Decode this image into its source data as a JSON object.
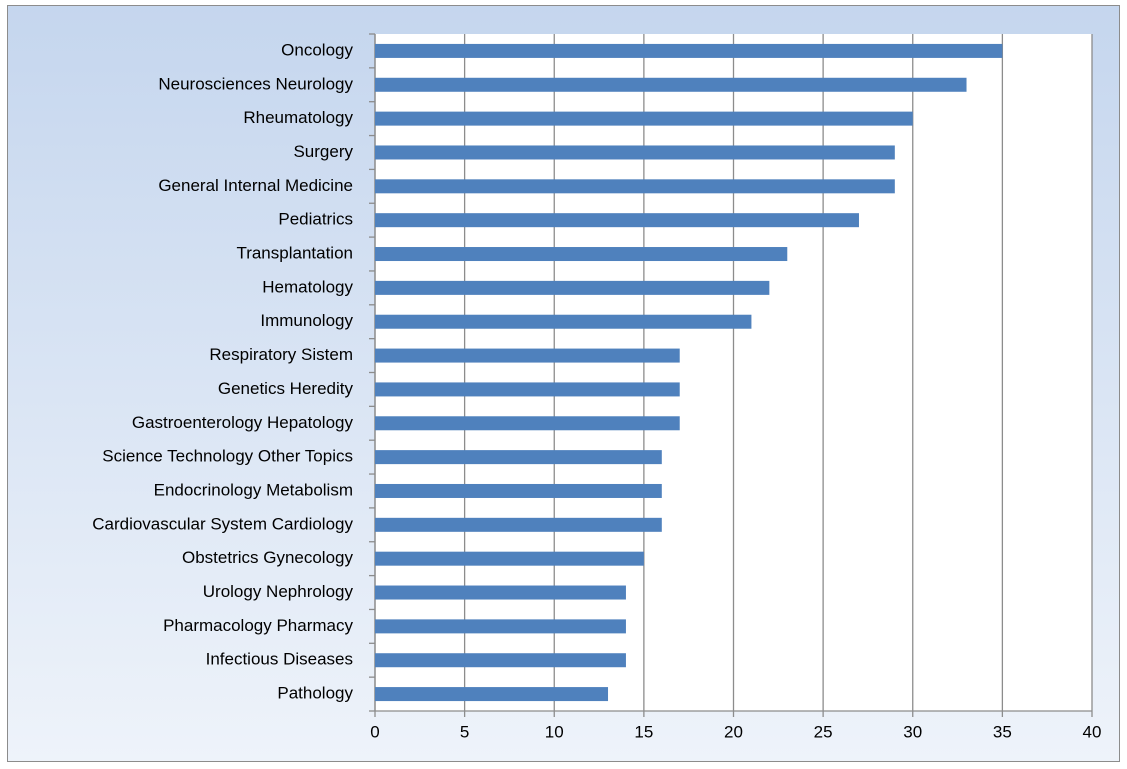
{
  "chart_data": {
    "type": "bar",
    "orientation": "horizontal",
    "categories": [
      "Oncology",
      "Neurosciences Neurology",
      "Rheumatology",
      "Surgery",
      "General Internal Medicine",
      "Pediatrics",
      "Transplantation",
      "Hematology",
      "Immunology",
      "Respiratory Sistem",
      "Genetics Heredity",
      "Gastroenterology Hepatology",
      "Science Technology Other Topics",
      "Endocrinology Metabolism",
      "Cardiovascular System Cardiology",
      "Obstetrics Gynecology",
      "Urology Nephrology",
      "Pharmacology Pharmacy",
      "Infectious Diseases",
      "Pathology"
    ],
    "values": [
      35,
      33,
      30,
      29,
      29,
      27,
      23,
      22,
      21,
      17,
      17,
      17,
      16,
      16,
      16,
      15,
      14,
      14,
      14,
      13
    ],
    "color": "#4f81bd",
    "xlim": [
      0,
      40
    ],
    "xticks": [
      0,
      5,
      10,
      15,
      20,
      25,
      30,
      35,
      40
    ],
    "grid": true
  }
}
